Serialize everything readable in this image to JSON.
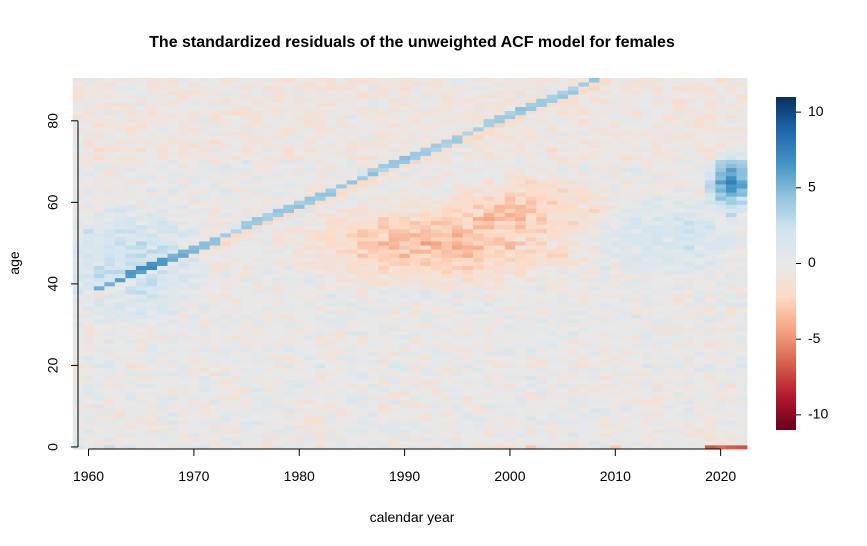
{
  "chart_data": {
    "type": "heatmap",
    "title": "The standardized residuals of the unweighted ACF model for females",
    "xlabel": "calendar year",
    "ylabel": "age",
    "x_range": [
      1959,
      2022
    ],
    "y_range": [
      0,
      90
    ],
    "xlim": [
      1959,
      2022.5
    ],
    "ylim": [
      -0.5,
      90.5
    ],
    "x_ticks": [
      1960,
      1970,
      1980,
      1990,
      2000,
      2010,
      2020
    ],
    "y_ticks": [
      0,
      20,
      40,
      60,
      80
    ],
    "colorbar": {
      "range": [
        -11,
        11
      ],
      "ticks": [
        10,
        5,
        0,
        -5,
        -10
      ],
      "colors": [
        "#67001f",
        "#b2182b",
        "#d6604d",
        "#f4a582",
        "#fddbc7",
        "#e8e8e8",
        "#d1e5f0",
        "#92c5de",
        "#4393c3",
        "#2166ac",
        "#053061"
      ]
    },
    "patterns": {
      "cohort_diagonal": {
        "from": [
          1962,
          40
        ],
        "to": [
          2008,
          90
        ],
        "value": 4
      },
      "cohort_diagonal_below": {
        "value": -2
      },
      "negative_region": {
        "center": [
          1993,
          50
        ],
        "value": -3.5
      },
      "positive_region_2020": {
        "center": [
          2021,
          65
        ],
        "value": 7
      },
      "positive_region_1960s": {
        "center": [
          1964,
          45
        ],
        "value": 2.5
      },
      "age0_row_2020s": {
        "value": -7
      }
    }
  }
}
